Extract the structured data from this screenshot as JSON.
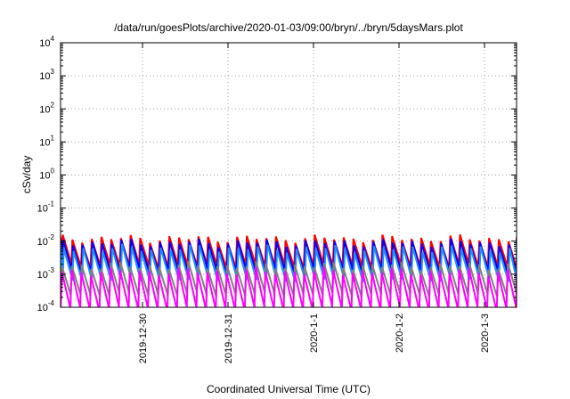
{
  "chart_data": {
    "type": "line",
    "title": "/data/run/goesPlots/archive/2020-01-03/09:00/bryn/../bryn/5daysMars.plot",
    "xlabel": "Coordinated Universal Time (UTC)",
    "ylabel": "cSv/day",
    "yscale": "log",
    "ylim": [
      0.0001,
      10000
    ],
    "y_ticks": [
      {
        "base": "10",
        "exp": "-4",
        "value": 0.0001
      },
      {
        "base": "10",
        "exp": "-3",
        "value": 0.001
      },
      {
        "base": "10",
        "exp": "-2",
        "value": 0.01
      },
      {
        "base": "10",
        "exp": "-1",
        "value": 0.1
      },
      {
        "base": "10",
        "exp": "0",
        "value": 1
      },
      {
        "base": "10",
        "exp": "1",
        "value": 10
      },
      {
        "base": "10",
        "exp": "2",
        "value": 100
      },
      {
        "base": "10",
        "exp": "3",
        "value": 1000
      },
      {
        "base": "10",
        "exp": "4",
        "value": 10000
      }
    ],
    "x_ticks": [
      "2019-12-30",
      "2019-12-31",
      "2020-1-1",
      "2020-1-2",
      "2020-1-3"
    ],
    "xlim": [
      "2019-12-29T01:00",
      "2020-01-03T09:00"
    ],
    "grid": true,
    "legend": "none",
    "sawtooth_period_hours": 2.72,
    "series": [
      {
        "color": "#ff0000",
        "peak": 0.012,
        "trough": 0.0018
      },
      {
        "color": "#0000ff",
        "peak": 0.009,
        "trough": 0.0012
      },
      {
        "color": "#1e90ff",
        "peak": 0.006,
        "trough": 0.0007
      },
      {
        "color": "#808080",
        "peak": 0.0018,
        "trough": 0.00025
      },
      {
        "color": "#ff00ff",
        "peak": 0.0012,
        "trough": 9e-05
      }
    ]
  }
}
